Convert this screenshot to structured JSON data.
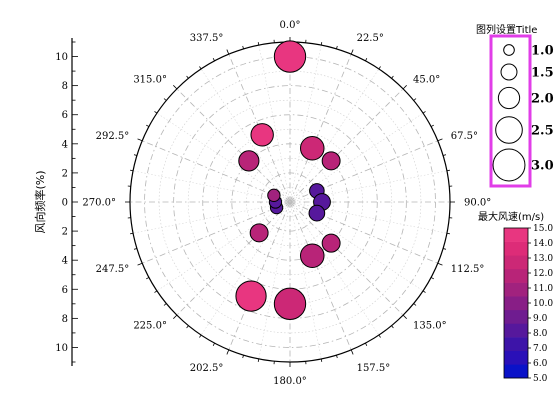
{
  "chart_data": {
    "type": "scatter",
    "subtype": "polar-bubble",
    "ylabel": "风向频率(%)",
    "radial_ticks": [
      0,
      2,
      4,
      6,
      8,
      10
    ],
    "rlim": [
      0,
      11
    ],
    "angle_labels": [
      "0.0°",
      "22.5°",
      "45.0°",
      "67.5°",
      "90.0°",
      "112.5°",
      "135.0°",
      "157.5°",
      "180.0°",
      "202.5°",
      "225.0°",
      "247.5°",
      "270.0°",
      "292.5°",
      "315.0°",
      "337.5°"
    ],
    "angles_deg": [
      0,
      22.5,
      45,
      67.5,
      90,
      112.5,
      135,
      157.5,
      180,
      202.5,
      225,
      247.5,
      270,
      292.5,
      315,
      337.5
    ],
    "points": [
      {
        "angle": 0,
        "r": 10.0,
        "size": 2.8,
        "color_value": 14.5
      },
      {
        "angle": 22.5,
        "r": 4.0,
        "size": 2.1,
        "color_value": 12.5
      },
      {
        "angle": 45,
        "r": 4.0,
        "size": 1.6,
        "color_value": 11.5
      },
      {
        "angle": 67.5,
        "r": 2.0,
        "size": 1.3,
        "color_value": 8.5
      },
      {
        "angle": 90,
        "r": 2.2,
        "size": 1.5,
        "color_value": 8.0
      },
      {
        "angle": 112.5,
        "r": 2.0,
        "size": 1.4,
        "color_value": 8.5
      },
      {
        "angle": 135,
        "r": 4.0,
        "size": 1.6,
        "color_value": 11.5
      },
      {
        "angle": 157.5,
        "r": 4.0,
        "size": 2.1,
        "color_value": 12.0
      },
      {
        "angle": 180,
        "r": 7.0,
        "size": 2.8,
        "color_value": 12.5
      },
      {
        "angle": 202.5,
        "r": 7.0,
        "size": 2.7,
        "color_value": 14.5
      },
      {
        "angle": 225,
        "r": 3.0,
        "size": 1.6,
        "color_value": 12.0
      },
      {
        "angle": 247.5,
        "r": 1.0,
        "size": 1.1,
        "color_value": 8.5
      },
      {
        "angle": 270,
        "r": 1.0,
        "size": 1.1,
        "color_value": 8.0
      },
      {
        "angle": 292.5,
        "r": 1.2,
        "size": 1.1,
        "color_value": 11.0
      },
      {
        "angle": 315,
        "r": 4.0,
        "size": 1.8,
        "color_value": 12.0
      },
      {
        "angle": 337.5,
        "r": 5.0,
        "size": 2.0,
        "color_value": 14.5
      }
    ],
    "size_legend": {
      "title": "图列设置Title",
      "values": [
        1.0,
        1.5,
        2.0,
        2.5,
        3.0
      ],
      "labels": [
        "1.0",
        "1.5",
        "2.0",
        "2.5",
        "3.0"
      ],
      "border_color": "#e13de8"
    },
    "colorbar": {
      "title": "最大风速(m/s)",
      "range": [
        5.0,
        15.0
      ],
      "ticks": [
        "15.0",
        "14.0",
        "13.0",
        "12.0",
        "11.0",
        "10.0",
        "9.0",
        "8.0",
        "7.0",
        "6.0",
        "5.0"
      ],
      "colors": [
        "#0a12c8",
        "#2a10b8",
        "#3d14a8",
        "#56189c",
        "#6f1c90",
        "#881e86",
        "#a1227e",
        "#b82478",
        "#cc2876",
        "#dd2c78",
        "#e83680"
      ]
    },
    "grid": true
  }
}
